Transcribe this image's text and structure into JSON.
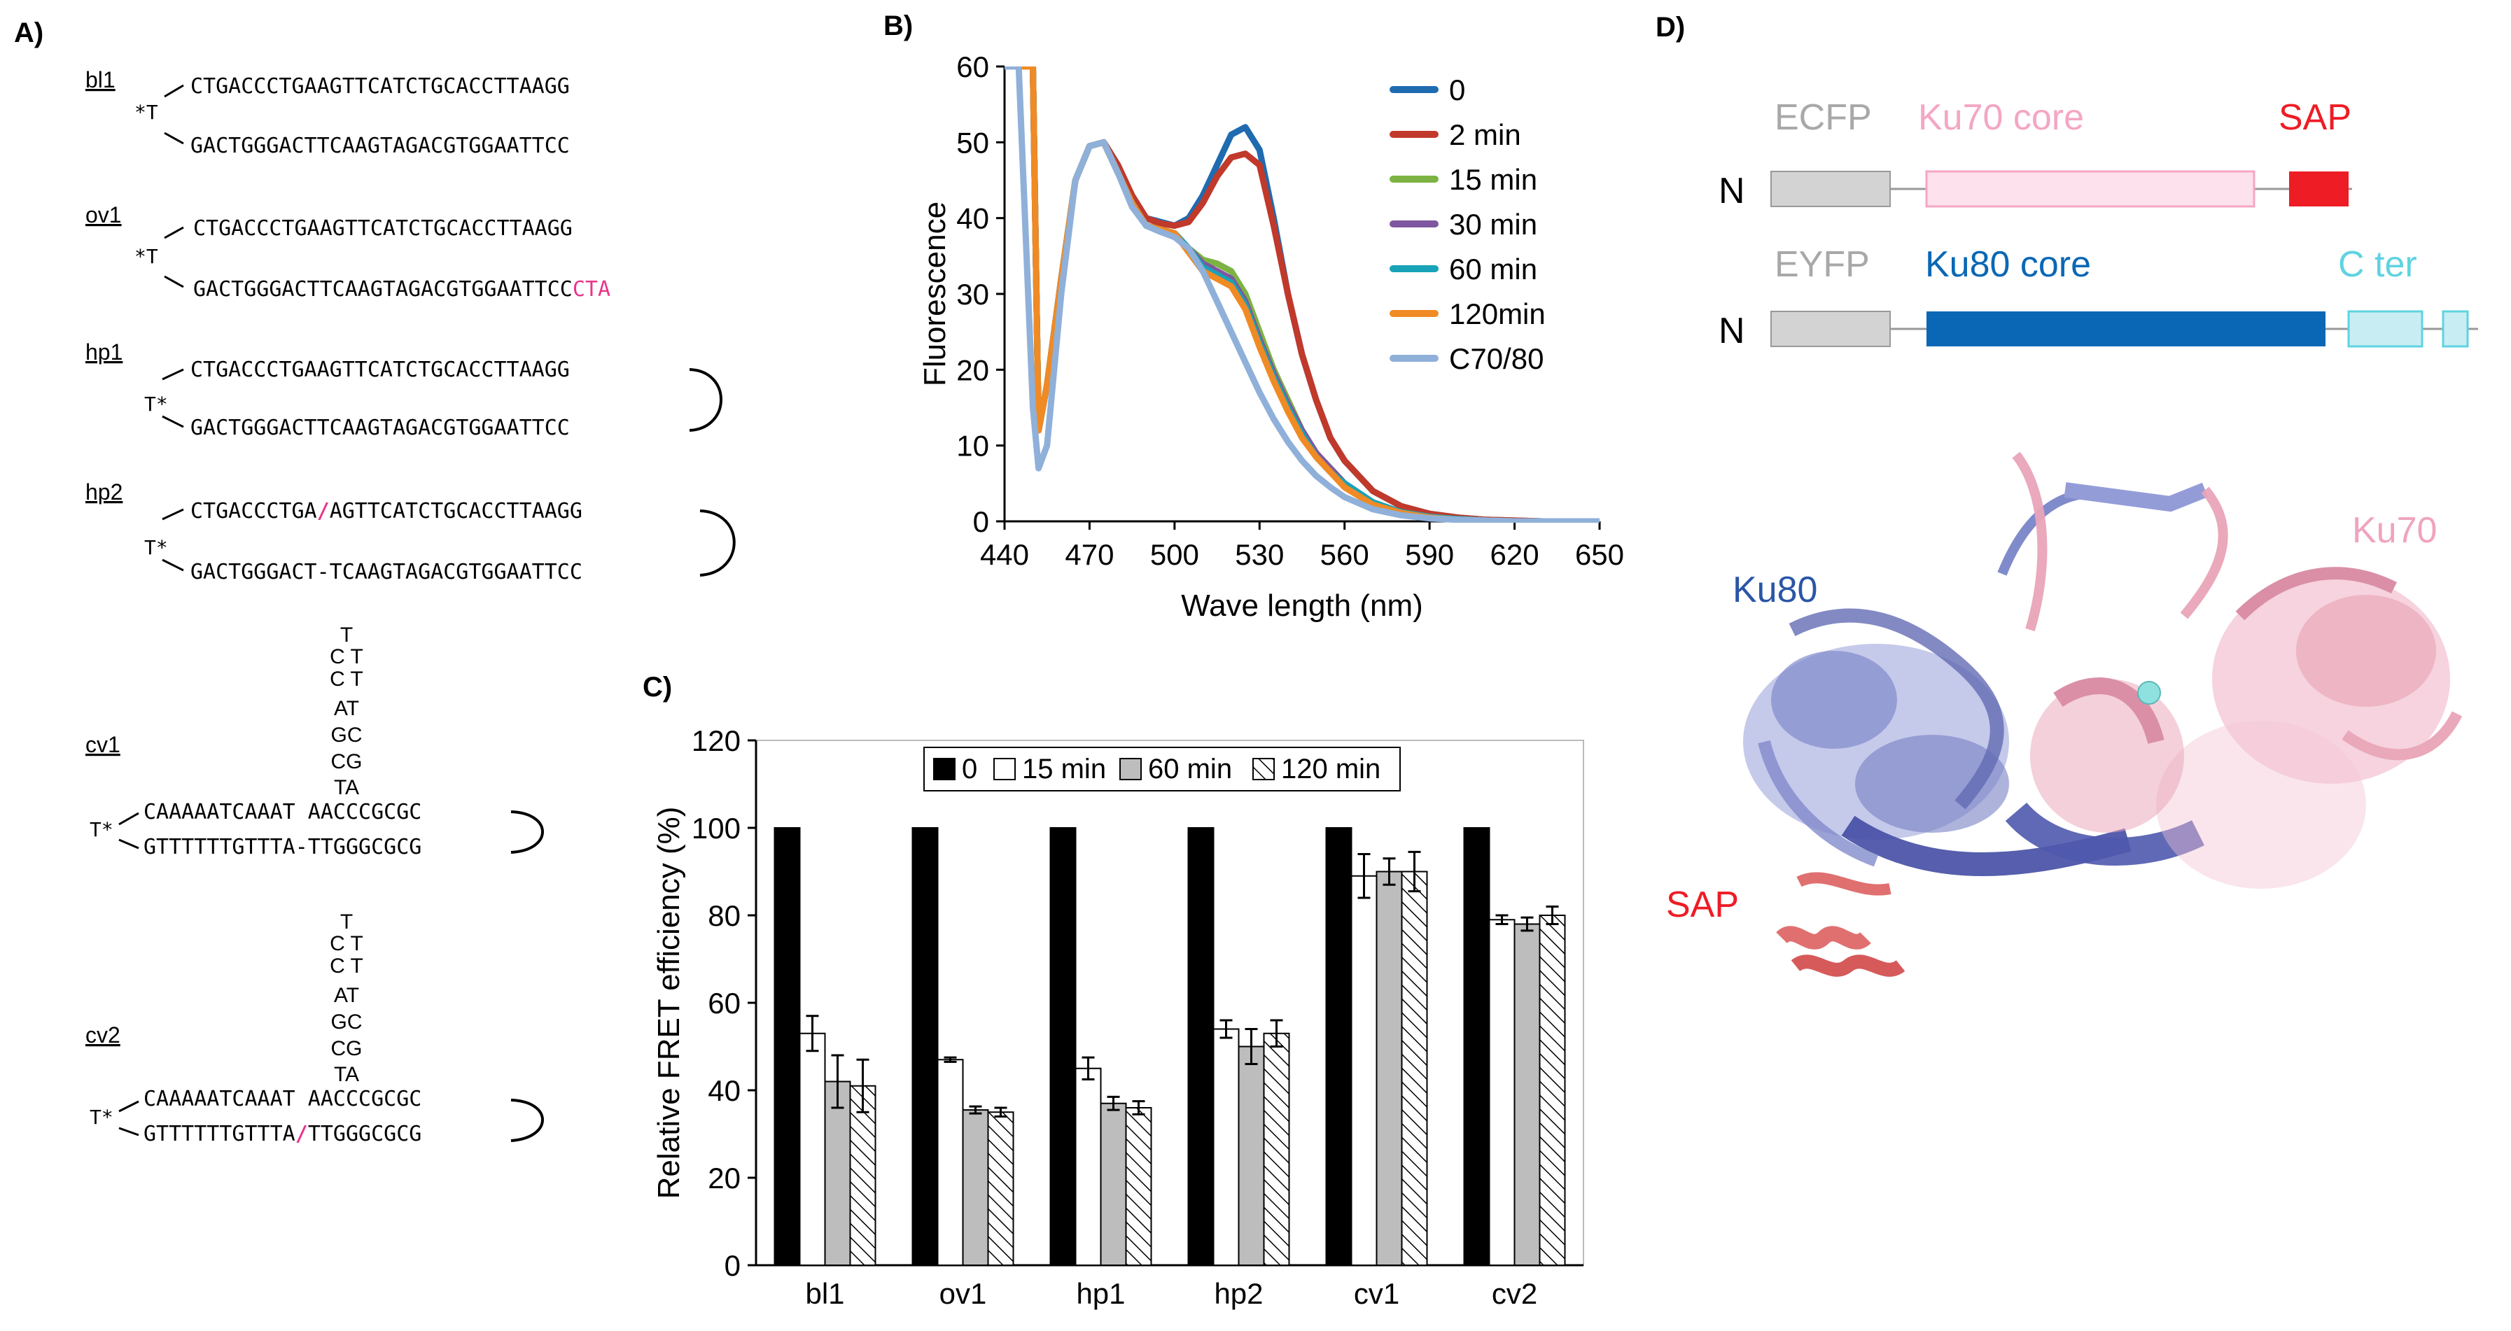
{
  "panel_a": {
    "label": "A)",
    "constructs": [
      {
        "name": "bl1",
        "marker": "*T",
        "top": "CTGACCCTGAAGTTCATCTGCACCTTAAGG",
        "bottom": "GACTGGGACTTCAAGTAGACGTGGAATTCC"
      },
      {
        "name": "ov1",
        "marker": "*T",
        "top": "CTGACCCTGAAGTTCATCTGCACCTTAAGG",
        "bottom": "GACTGGGACTTCAAGTAGACGTGGAATTCC",
        "bottom_tail": "CTA"
      },
      {
        "name": "hp1",
        "marker": "T*",
        "top": "CTGACCCTGAAGTTCATCTGCACCTTAAGG",
        "bottom": "GACTGGGACTTCAAGTAGACGTGGAATTCC"
      },
      {
        "name": "hp2",
        "marker": "T*",
        "top_a": "CTGACCCTGA",
        "top_b": "AGTTCATCTGCACCTTAAGG",
        "bottom": "GACTGGGACT-TCAAGTAGACGTGGAATTCC"
      },
      {
        "name": "cv1",
        "marker": "T*",
        "stem": [
          "T",
          "C T",
          "C T",
          "AT",
          "GC",
          "CG",
          "TA"
        ],
        "top": "CAAAAATCAAAT AACCCGCGC",
        "bottom": "GTTTTTTGTTTA-TTGGGCGCG"
      },
      {
        "name": "cv2",
        "marker": "T*",
        "stem": [
          "T",
          "C T",
          "C T",
          "AT",
          "GC",
          "CG",
          "TA"
        ],
        "top": "CAAAAATCAAAT AACCCGCGC",
        "bottom_a": "GTTTTTTGTTTA",
        "bottom_b": "TTGGGCGCG"
      }
    ],
    "slash": "/"
  },
  "panel_b": {
    "label": "B)"
  },
  "panel_c": {
    "label": "C)"
  },
  "panel_d": {
    "label": "D)",
    "domain_rows": [
      {
        "n": "N",
        "tag": "ECFP",
        "core": "Ku70 core",
        "end": "SAP"
      },
      {
        "n": "N",
        "tag": "EYFP",
        "core": "Ku80 core",
        "end": "C ter"
      }
    ],
    "structure_labels": {
      "ku80": "Ku80",
      "ku70": "Ku70",
      "sap": "SAP"
    },
    "colors": {
      "grey": "#d3d3d3",
      "ku70": "#fde1ec",
      "ku70_text": "#f4a6c4",
      "sap": "#ee1c25",
      "ku80": "#0a67b5",
      "cter": "#c8eef4",
      "cter_text": "#5fd3e0",
      "ku80_struct": "#7a85c9",
      "ku70_struct": "#e9a4b8"
    }
  },
  "chart_data": [
    {
      "type": "line",
      "panel": "B",
      "xlabel": "Wave length (nm)",
      "ylabel": "Fluorescence",
      "xlim": [
        440,
        650
      ],
      "ylim": [
        0,
        60
      ],
      "xticks": [
        "440",
        "470",
        "500",
        "530",
        "560",
        "590",
        "620",
        "650"
      ],
      "yticks": [
        "0",
        "10",
        "20",
        "30",
        "40",
        "50",
        "60"
      ],
      "legend_position": "top-right",
      "x": [
        440,
        445,
        450,
        452,
        455,
        460,
        465,
        470,
        475,
        480,
        485,
        490,
        495,
        500,
        505,
        510,
        515,
        520,
        525,
        530,
        535,
        540,
        545,
        550,
        555,
        560,
        570,
        580,
        590,
        600,
        610,
        620,
        630,
        640,
        650
      ],
      "series": [
        {
          "name": "0",
          "color": "#1f6bb0",
          "values": [
            60,
            60,
            60,
            12,
            18,
            32,
            45,
            49.5,
            50,
            47,
            43,
            40,
            39.5,
            39,
            40,
            43,
            47,
            51,
            52,
            49,
            40,
            30,
            22,
            16,
            11,
            8,
            4,
            2,
            1,
            0.5,
            0.2,
            0.1,
            0,
            0,
            0
          ]
        },
        {
          "name": "2 min",
          "color": "#c0392b",
          "values": [
            60,
            60,
            60,
            12,
            18,
            32,
            45,
            49.5,
            50,
            47,
            43,
            40,
            39.3,
            39,
            39.5,
            42,
            45.5,
            48,
            48.5,
            47,
            39,
            30,
            22,
            16,
            11,
            8,
            4,
            2,
            1,
            0.5,
            0.2,
            0.1,
            0,
            0,
            0
          ]
        },
        {
          "name": "15 min",
          "color": "#7cb342",
          "values": [
            60,
            60,
            60,
            12,
            18,
            32,
            45,
            49.5,
            50,
            46,
            42,
            39,
            38.5,
            38,
            36,
            34.5,
            34,
            33,
            30,
            25,
            20,
            16,
            12,
            9,
            7,
            5,
            2.5,
            1.2,
            0.6,
            0.3,
            0.1,
            0,
            0,
            0,
            0
          ]
        },
        {
          "name": "30 min",
          "color": "#7e57a0",
          "values": [
            60,
            60,
            60,
            12,
            18,
            32,
            45,
            49.5,
            50,
            46,
            42,
            39,
            38.5,
            38,
            36,
            34,
            33,
            32,
            29,
            24,
            19.5,
            15.5,
            12,
            9,
            7,
            5,
            2.5,
            1.2,
            0.6,
            0.3,
            0.1,
            0,
            0,
            0,
            0
          ]
        },
        {
          "name": "60 min",
          "color": "#18a3b8",
          "values": [
            60,
            60,
            60,
            12,
            18,
            32,
            45,
            49.5,
            50,
            46,
            42,
            39,
            38.5,
            38,
            36,
            33.5,
            32.5,
            31.5,
            28.5,
            23.5,
            19,
            15,
            11.5,
            8.5,
            6.5,
            5,
            2.5,
            1.2,
            0.6,
            0.3,
            0.1,
            0,
            0,
            0,
            0
          ]
        },
        {
          "name": "120min",
          "color": "#f08a24",
          "values": [
            60,
            60,
            60,
            12,
            18,
            32,
            45,
            49.5,
            50,
            46,
            42,
            39,
            38.5,
            38,
            35.5,
            33,
            32,
            31,
            28,
            23,
            18.5,
            14.5,
            11,
            8.5,
            6.5,
            4.5,
            2.2,
            1.1,
            0.5,
            0.2,
            0.1,
            0,
            0,
            0,
            0
          ]
        },
        {
          "name": "C70/80",
          "color": "#8fb0d9",
          "values": [
            60,
            60,
            15,
            7,
            10,
            30,
            45,
            49.5,
            50,
            46,
            41.5,
            39,
            38.2,
            37.5,
            36,
            33,
            29,
            25,
            21,
            17,
            13.5,
            10.5,
            8,
            6,
            4.5,
            3.2,
            1.6,
            0.8,
            0.4,
            0.2,
            0.1,
            0,
            0,
            0,
            0
          ]
        }
      ]
    },
    {
      "type": "bar",
      "panel": "C",
      "ylabel": "Relative FRET efficiency (%)",
      "xlabel": "",
      "ylim": [
        0,
        120
      ],
      "yticks": [
        "0",
        "20",
        "40",
        "60",
        "80",
        "100",
        "120"
      ],
      "legend_position": "top-center",
      "categories": [
        "bl1",
        "ov1",
        "hp1",
        "hp2",
        "cv1",
        "cv2"
      ],
      "series": [
        {
          "name": "0",
          "fill": "black",
          "values": [
            100,
            100,
            100,
            100,
            100,
            100
          ],
          "errors": [
            0,
            0,
            0,
            0,
            0,
            0
          ]
        },
        {
          "name": "15 min",
          "fill": "white",
          "values": [
            53,
            47,
            45,
            54,
            89,
            79
          ],
          "errors": [
            4,
            0.5,
            2.5,
            2,
            5,
            1
          ]
        },
        {
          "name": "60 min",
          "fill": "grey",
          "values": [
            42,
            35.5,
            37,
            50,
            90,
            78
          ],
          "errors": [
            6,
            0.8,
            1.5,
            4,
            3,
            1.5
          ]
        },
        {
          "name": "120 min",
          "fill": "hatch",
          "values": [
            41,
            35,
            36,
            53,
            90,
            80
          ],
          "errors": [
            6,
            1,
            1.5,
            3,
            4.5,
            2
          ]
        }
      ]
    }
  ]
}
